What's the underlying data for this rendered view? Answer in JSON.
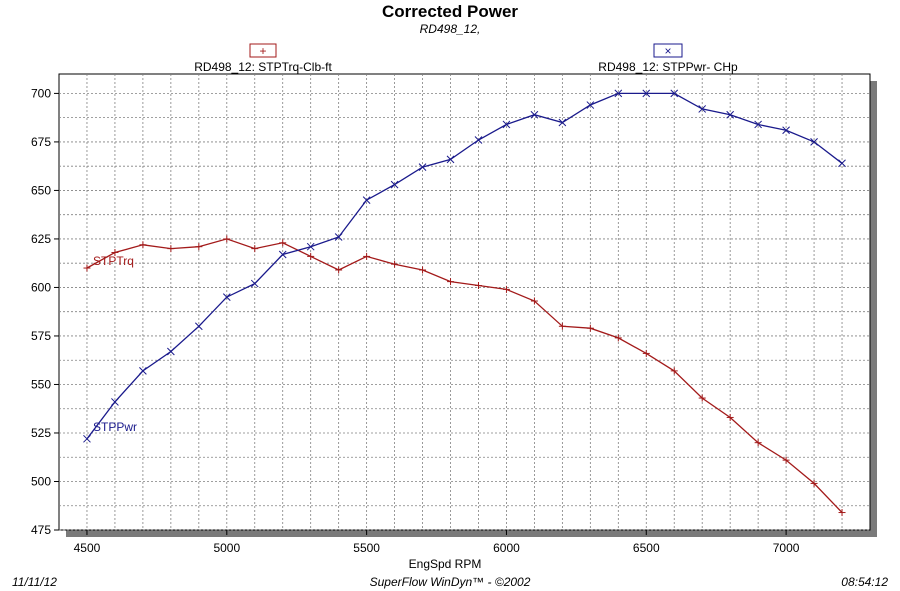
{
  "header": {
    "title": "Corrected Power",
    "subtitle": "RD498_12,"
  },
  "footer": {
    "date": "11/11/12",
    "software": "SuperFlow WinDyn™ - ©2002",
    "time": "08:54:12"
  },
  "colors": {
    "torque": "#a31a1a",
    "power": "#1a1a8c",
    "grid": "#808080",
    "shadow": "#7a7a7a"
  },
  "chart_data": {
    "type": "line",
    "title": "Corrected Power",
    "subtitle": "RD498_12,",
    "xlabel": "EngSpd  RPM",
    "ylabel": "",
    "xlim": [
      4400,
      7300
    ],
    "ylim": [
      475,
      710
    ],
    "xticks": [
      "4500",
      "5000",
      "5500",
      "6000",
      "6500",
      "7000"
    ],
    "xtick_values": [
      4500,
      5000,
      5500,
      6000,
      6500,
      7000
    ],
    "yticks": [
      "475",
      "500",
      "525",
      "550",
      "575",
      "600",
      "625",
      "650",
      "675",
      "700"
    ],
    "ytick_values": [
      475,
      500,
      525,
      550,
      575,
      600,
      625,
      650,
      675,
      700
    ],
    "x": [
      4500,
      4600,
      4700,
      4800,
      4900,
      5000,
      5100,
      5200,
      5300,
      5400,
      5500,
      5600,
      5700,
      5800,
      5900,
      6000,
      6100,
      6200,
      6300,
      6400,
      6500,
      6600,
      6700,
      6800,
      6900,
      7000,
      7100,
      7200
    ],
    "series": [
      {
        "name": "RD498_12: STPTrq-Clb-ft",
        "label": "STPTrq",
        "marker": "+",
        "values": [
          610,
          618,
          622,
          620,
          621,
          625,
          620,
          623,
          616,
          609,
          616,
          612,
          609,
          603,
          601,
          599,
          593,
          580,
          579,
          574,
          566,
          557,
          543,
          533,
          520,
          511,
          499,
          484
        ]
      },
      {
        "name": "RD498_12: STPPwr- CHp",
        "label": "STPPwr",
        "marker": "x",
        "values": [
          522,
          541,
          557,
          567,
          580,
          595,
          602,
          617,
          621,
          626,
          645,
          653,
          662,
          666,
          676,
          684,
          689,
          685,
          694,
          700,
          700,
          700,
          692,
          689,
          684,
          681,
          675,
          664
        ]
      }
    ],
    "legend": [
      {
        "name": "RD498_12: STPTrq-Clb-ft",
        "symbol": "+"
      },
      {
        "name": "RD498_12: STPPwr- CHp",
        "symbol": "×"
      }
    ],
    "grid": true
  }
}
